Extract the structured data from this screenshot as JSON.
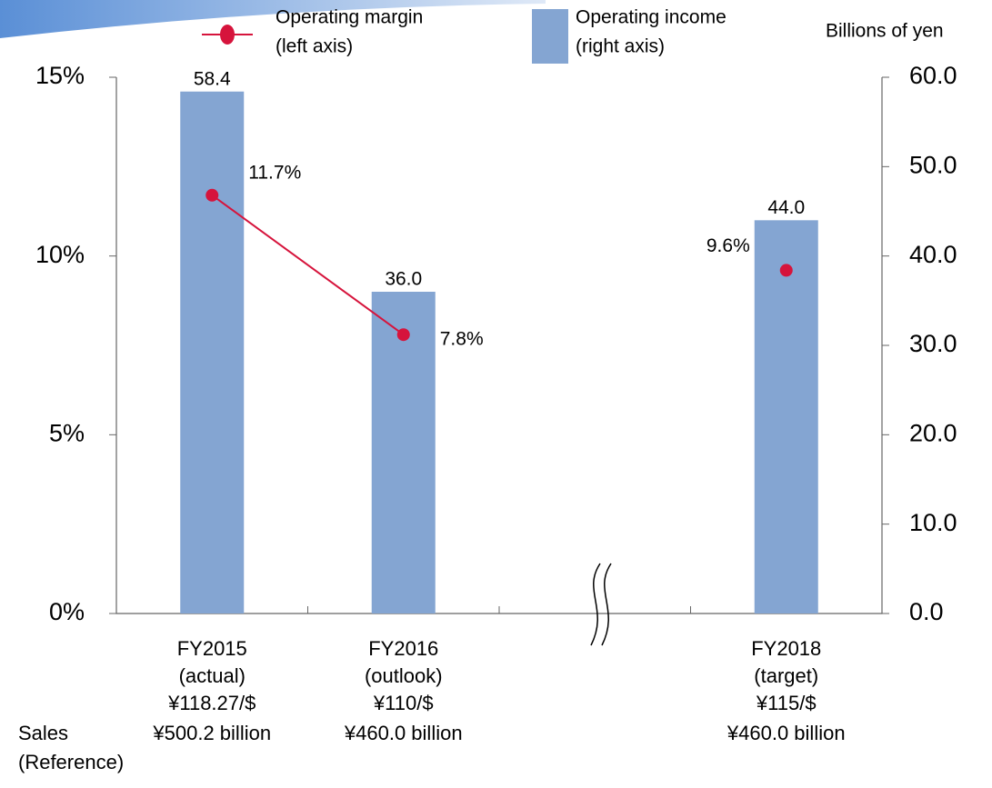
{
  "chart_data": {
    "type": "bar_line",
    "categories": [
      "FY2015",
      "FY2016",
      null,
      "FY2018"
    ],
    "category_status": [
      "(actual)",
      "(outlook)",
      null,
      "(target)"
    ],
    "exchange_rates": [
      "¥118.27/$",
      "¥110/$",
      null,
      "¥115/$"
    ],
    "sales": [
      "¥500.2 billion",
      "¥460.0 billion",
      null,
      "¥460.0 billion"
    ],
    "sales_label": "Sales",
    "sales_note": "(Reference)",
    "y2_label": "Billions of yen",
    "series": [
      {
        "name": "Operating margin",
        "legend_note": "(left axis)",
        "type": "line",
        "axis": "y",
        "color": "#d6143c",
        "values": [
          11.7,
          7.8,
          null,
          9.6
        ],
        "value_labels": [
          "11.7%",
          "7.8%",
          null,
          "9.6%"
        ]
      },
      {
        "name": "Operating income",
        "legend_note": "(right axis)",
        "type": "bar",
        "axis": "y2",
        "color": "#84a5d2",
        "values": [
          58.4,
          36.0,
          null,
          44.0
        ],
        "value_labels": [
          "58.4",
          "36.0",
          null,
          "44.0"
        ]
      }
    ],
    "ylim": [
      0,
      15
    ],
    "yticks": [
      {
        "value": 0,
        "label": "0%"
      },
      {
        "value": 5,
        "label": "5%"
      },
      {
        "value": 10,
        "label": "10%"
      },
      {
        "value": 15,
        "label": "15%"
      }
    ],
    "y2lim": [
      0,
      60
    ],
    "y2ticks": [
      {
        "value": 0,
        "label": "0.0"
      },
      {
        "value": 10,
        "label": "10.0"
      },
      {
        "value": 20,
        "label": "20.0"
      },
      {
        "value": 30,
        "label": "30.0"
      },
      {
        "value": 40,
        "label": "40.0"
      },
      {
        "value": 50,
        "label": "50.0"
      },
      {
        "value": 60,
        "label": "60.0"
      }
    ],
    "grid": false
  }
}
